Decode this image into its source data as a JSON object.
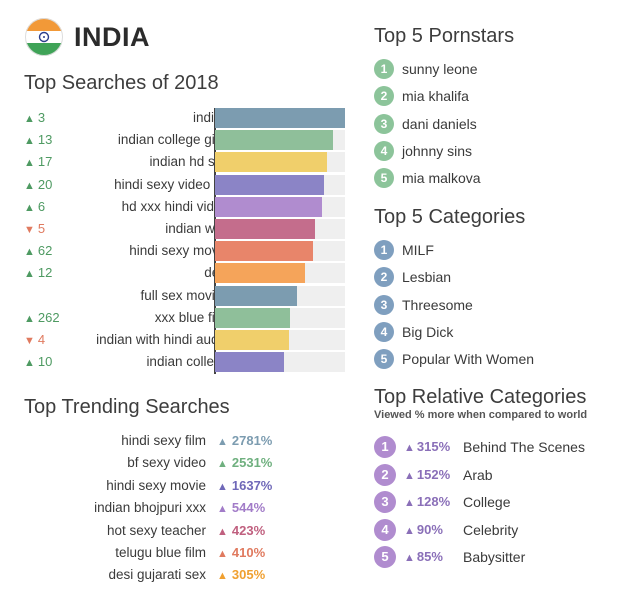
{
  "header": {
    "country": "INDIA",
    "flag_icon": "india-flag-icon"
  },
  "searches": {
    "title": "Top Searches of 2018",
    "rows": [
      {
        "change": "3",
        "dir": "up",
        "term": "indian",
        "value": 100,
        "color": "#7c9cb0"
      },
      {
        "change": "13",
        "dir": "up",
        "term": "indian college girls",
        "value": 91,
        "color": "#8fbf9a"
      },
      {
        "change": "17",
        "dir": "up",
        "term": "indian hd sex",
        "value": 86,
        "color": "#f0cf6b"
      },
      {
        "change": "20",
        "dir": "up",
        "term": "hindi sexy video hd",
        "value": 84,
        "color": "#8b84c6"
      },
      {
        "change": "6",
        "dir": "up",
        "term": "hd xxx hindi video",
        "value": 82,
        "color": "#b08ccf"
      },
      {
        "change": "5",
        "dir": "down",
        "term": "indian wife",
        "value": 77,
        "color": "#c46d8c"
      },
      {
        "change": "62",
        "dir": "up",
        "term": "hindi sexy movie",
        "value": 75,
        "color": "#e8856a"
      },
      {
        "change": "12",
        "dir": "up",
        "term": "desi",
        "value": 69,
        "color": "#f5a45a"
      },
      {
        "change": "",
        "dir": "",
        "term": "full sex movies",
        "value": 63,
        "color": "#7c9cb0"
      },
      {
        "change": "262",
        "dir": "up",
        "term": "xxx blue film",
        "value": 58,
        "color": "#8fbf9a"
      },
      {
        "change": "4",
        "dir": "down",
        "term": "indian with hindi audio",
        "value": 57,
        "color": "#f0cf6b"
      },
      {
        "change": "10",
        "dir": "up",
        "term": "indian college",
        "value": 53,
        "color": "#8b84c6"
      }
    ]
  },
  "chart_data": {
    "type": "bar",
    "title": "Top Searches of 2018",
    "categories": [
      "indian",
      "indian college girls",
      "indian hd sex",
      "hindi sexy video hd",
      "hd xxx hindi video",
      "indian wife",
      "hindi sexy movie",
      "desi",
      "full sex movies",
      "xxx blue film",
      "indian with hindi audio",
      "indian college"
    ],
    "values": [
      100,
      91,
      86,
      84,
      82,
      77,
      75,
      69,
      63,
      58,
      57,
      53
    ],
    "rank_change": [
      "+3",
      "+13",
      "+17",
      "+20",
      "+6",
      "-5",
      "+62",
      "+12",
      "",
      "+262",
      "-4",
      "+10"
    ]
  },
  "trending": {
    "title": "Top Trending Searches",
    "rows": [
      {
        "term": "hindi sexy film",
        "value": "2781%",
        "color": "#7c9cb0"
      },
      {
        "term": "bf sexy video",
        "value": "2531%",
        "color": "#6fb07f"
      },
      {
        "term": "hindi sexy movie",
        "value": "1637%",
        "color": "#6f68b8"
      },
      {
        "term": "indian bhojpuri xxx",
        "value": "544%",
        "color": "#a27cc8"
      },
      {
        "term": "hot sexy teacher",
        "value": "423%",
        "color": "#c0607f"
      },
      {
        "term": "telugu blue film",
        "value": "410%",
        "color": "#e07a5f"
      },
      {
        "term": "desi gujarati sex",
        "value": "305%",
        "color": "#f0a030"
      }
    ]
  },
  "pornstars": {
    "title": "Top 5 Pornstars",
    "badge_color": "#8cc49a",
    "items": [
      "sunny leone",
      "mia khalifa",
      "dani daniels",
      "johnny sins",
      "mia malkova"
    ]
  },
  "categories": {
    "title": "Top 5 Categories",
    "badge_color": "#7f9fbf",
    "items": [
      "MILF",
      "Lesbian",
      "Threesome",
      "Big Dick",
      "Popular With Women"
    ]
  },
  "relative": {
    "title": "Top Relative Categories",
    "subtitle": "Viewed % more when compared to world",
    "badge_color": "#b08ccf",
    "items": [
      {
        "value": "315%",
        "name": "Behind The Scenes"
      },
      {
        "value": "152%",
        "name": "Arab"
      },
      {
        "value": "128%",
        "name": "College"
      },
      {
        "value": "90%",
        "name": "Celebrity"
      },
      {
        "value": "85%",
        "name": "Babysitter"
      }
    ]
  }
}
